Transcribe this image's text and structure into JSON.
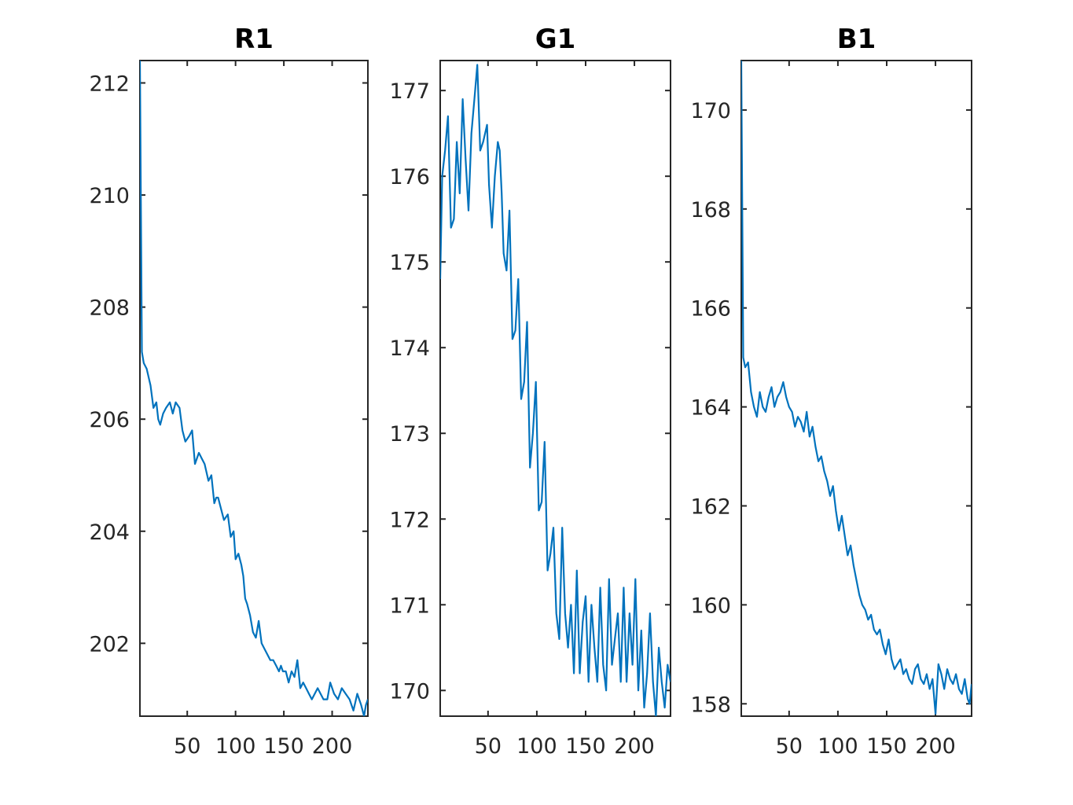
{
  "colors": {
    "line": "#0072BD",
    "axes": "#262626",
    "title": "#000000"
  },
  "chart_data": [
    {
      "type": "line",
      "title": "R1",
      "xlabel": "",
      "ylabel": "",
      "xlim": [
        1,
        237
      ],
      "ylim": [
        200.7,
        212.4
      ],
      "xticks": [
        50,
        100,
        150,
        200
      ],
      "xtick_labels": [
        "50",
        "100",
        "150",
        "200"
      ],
      "yticks": [
        202,
        204,
        206,
        208,
        210,
        212
      ],
      "ytick_labels": [
        "202",
        "204",
        "206",
        "208",
        "210",
        "212"
      ],
      "grid": false,
      "series": [
        {
          "x": [
            1,
            3,
            5,
            8,
            12,
            15,
            18,
            20,
            22,
            25,
            28,
            32,
            35,
            38,
            42,
            45,
            48,
            52,
            55,
            58,
            62,
            65,
            68,
            72,
            75,
            78,
            80,
            82,
            85,
            88,
            92,
            95,
            98,
            100,
            103,
            106,
            108,
            110,
            112,
            115,
            118,
            121,
            124,
            127,
            130,
            133,
            136,
            139,
            142,
            145,
            147,
            149,
            152,
            155,
            158,
            161,
            164,
            167,
            170,
            173,
            176,
            179,
            182,
            185,
            188,
            191,
            195,
            198,
            202,
            206,
            210,
            214,
            218,
            222,
            226,
            230,
            233,
            235,
            237
          ],
          "y": [
            212.4,
            207.2,
            207.0,
            206.9,
            206.6,
            206.2,
            206.3,
            206.0,
            205.9,
            206.1,
            206.2,
            206.3,
            206.1,
            206.3,
            206.2,
            205.8,
            205.6,
            205.7,
            205.8,
            205.2,
            205.4,
            205.3,
            205.2,
            204.9,
            205.0,
            204.5,
            204.6,
            204.6,
            204.4,
            204.2,
            204.3,
            203.9,
            204.0,
            203.5,
            203.6,
            203.4,
            203.2,
            202.8,
            202.7,
            202.5,
            202.2,
            202.1,
            202.4,
            202.0,
            201.9,
            201.8,
            201.7,
            201.7,
            201.6,
            201.5,
            201.6,
            201.5,
            201.5,
            201.3,
            201.5,
            201.4,
            201.7,
            201.2,
            201.3,
            201.2,
            201.1,
            201.0,
            201.1,
            201.2,
            201.1,
            201.0,
            201.0,
            201.3,
            201.1,
            201.0,
            201.2,
            201.1,
            201.0,
            200.8,
            201.1,
            200.9,
            200.7,
            200.9,
            201.0
          ]
        }
      ]
    },
    {
      "type": "line",
      "title": "G1",
      "xlabel": "",
      "ylabel": "",
      "xlim": [
        1,
        237
      ],
      "ylim": [
        169.7,
        177.35
      ],
      "xticks": [
        50,
        100,
        150,
        200
      ],
      "xtick_labels": [
        "50",
        "100",
        "150",
        "200"
      ],
      "yticks": [
        170,
        171,
        172,
        173,
        174,
        175,
        176,
        177
      ],
      "ytick_labels": [
        "170",
        "171",
        "172",
        "173",
        "174",
        "175",
        "176",
        "177"
      ],
      "grid": false,
      "series": [
        {
          "x": [
            1,
            3,
            6,
            9,
            12,
            15,
            18,
            21,
            24,
            27,
            30,
            33,
            36,
            39,
            42,
            45,
            47,
            49,
            51,
            54,
            57,
            60,
            62,
            64,
            66,
            69,
            72,
            75,
            78,
            81,
            84,
            87,
            90,
            93,
            96,
            99,
            102,
            105,
            108,
            111,
            114,
            117,
            120,
            123,
            126,
            129,
            132,
            135,
            138,
            141,
            144,
            147,
            150,
            153,
            156,
            159,
            162,
            165,
            168,
            171,
            174,
            177,
            180,
            183,
            186,
            189,
            192,
            195,
            198,
            201,
            204,
            207,
            210,
            213,
            216,
            219,
            222,
            225,
            228,
            231,
            234,
            237
          ],
          "y": [
            174.8,
            176.0,
            176.3,
            176.7,
            175.4,
            175.5,
            176.4,
            175.8,
            176.9,
            176.2,
            175.6,
            176.5,
            176.9,
            177.3,
            176.3,
            176.4,
            176.5,
            176.6,
            175.9,
            175.4,
            176.0,
            176.4,
            176.3,
            175.8,
            175.1,
            174.9,
            175.6,
            174.1,
            174.2,
            174.8,
            173.4,
            173.6,
            174.3,
            172.6,
            173.0,
            173.6,
            172.1,
            172.2,
            172.9,
            171.4,
            171.6,
            171.9,
            170.9,
            170.6,
            171.9,
            170.9,
            170.5,
            171.0,
            170.2,
            171.4,
            170.2,
            170.8,
            171.1,
            170.1,
            171.0,
            170.5,
            170.1,
            171.2,
            170.3,
            170.0,
            171.3,
            170.3,
            170.6,
            170.9,
            170.1,
            171.2,
            170.1,
            170.9,
            170.3,
            171.3,
            170.0,
            170.7,
            169.8,
            170.2,
            170.9,
            170.1,
            169.7,
            170.5,
            170.1,
            169.8,
            170.3,
            170.1
          ]
        }
      ]
    },
    {
      "type": "line",
      "title": "B1",
      "xlabel": "",
      "ylabel": "",
      "xlim": [
        1,
        237
      ],
      "ylim": [
        157.75,
        171.0
      ],
      "xticks": [
        50,
        100,
        150,
        200
      ],
      "xtick_labels": [
        "50",
        "100",
        "150",
        "200"
      ],
      "yticks": [
        158,
        160,
        162,
        164,
        166,
        168,
        170
      ],
      "ytick_labels": [
        "158",
        "160",
        "162",
        "164",
        "166",
        "168",
        "170"
      ],
      "grid": false,
      "series": [
        {
          "x": [
            1,
            3,
            5,
            8,
            11,
            14,
            17,
            20,
            23,
            26,
            29,
            32,
            35,
            38,
            41,
            44,
            47,
            50,
            53,
            56,
            59,
            62,
            65,
            68,
            71,
            74,
            77,
            80,
            83,
            86,
            89,
            92,
            95,
            98,
            101,
            104,
            107,
            110,
            113,
            116,
            119,
            122,
            125,
            128,
            131,
            134,
            137,
            140,
            143,
            146,
            149,
            152,
            155,
            158,
            161,
            164,
            167,
            170,
            173,
            176,
            179,
            182,
            185,
            188,
            191,
            194,
            197,
            200,
            203,
            206,
            209,
            212,
            215,
            218,
            221,
            224,
            227,
            230,
            233,
            235,
            237
          ],
          "y": [
            171.0,
            165.0,
            164.8,
            164.9,
            164.3,
            164.0,
            163.8,
            164.3,
            164.0,
            163.9,
            164.2,
            164.4,
            164.0,
            164.2,
            164.3,
            164.5,
            164.2,
            164.0,
            163.9,
            163.6,
            163.8,
            163.7,
            163.5,
            163.9,
            163.4,
            163.6,
            163.2,
            162.9,
            163.0,
            162.7,
            162.5,
            162.2,
            162.4,
            161.9,
            161.5,
            161.8,
            161.4,
            161.0,
            161.2,
            160.8,
            160.5,
            160.2,
            160.0,
            159.9,
            159.7,
            159.8,
            159.5,
            159.4,
            159.5,
            159.2,
            159.0,
            159.3,
            158.9,
            158.7,
            158.8,
            158.9,
            158.6,
            158.7,
            158.5,
            158.4,
            158.7,
            158.8,
            158.5,
            158.4,
            158.6,
            158.3,
            158.5,
            157.8,
            158.8,
            158.6,
            158.3,
            158.7,
            158.5,
            158.4,
            158.6,
            158.3,
            158.2,
            158.5,
            158.1,
            158.0,
            158.4
          ]
        }
      ]
    }
  ]
}
